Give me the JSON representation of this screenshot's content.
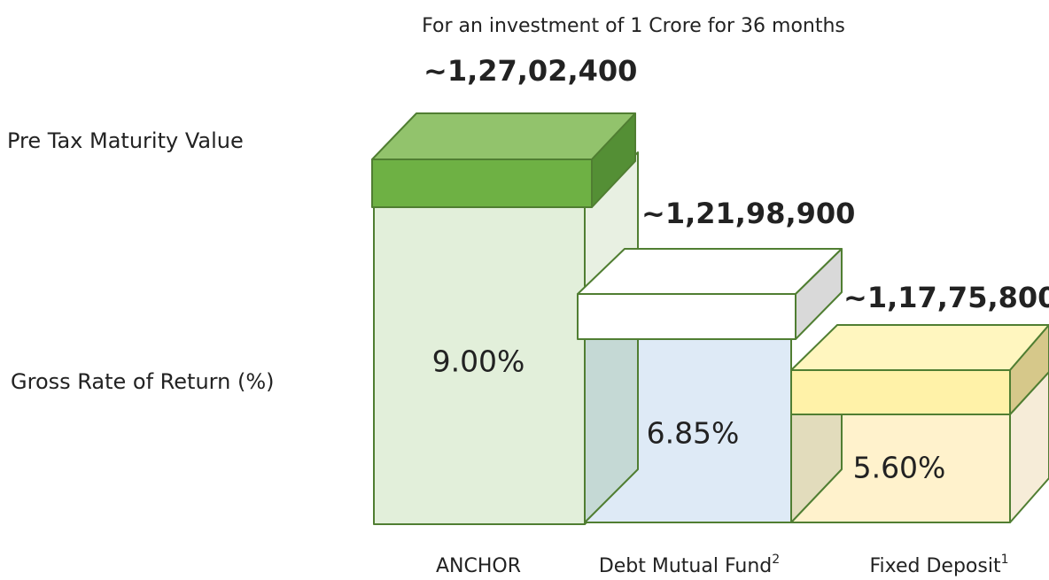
{
  "header": {
    "title": "For an investment of 1 Crore for 36 months"
  },
  "row_labels": [
    "Pre Tax Maturity Value",
    "Gross Rate of Return (%)"
  ],
  "items": [
    {
      "name": "ANCHOR",
      "maturity": "~1,27,02,400",
      "rate": "9.00%"
    },
    {
      "name": "Debt Mutual Fund",
      "note": "2",
      "maturity": "~1,21,98,900",
      "rate": "6.85%"
    },
    {
      "name": "Fixed Deposit",
      "note": "1",
      "maturity": "~1,17,75,800",
      "rate": "5.60%"
    }
  ]
}
